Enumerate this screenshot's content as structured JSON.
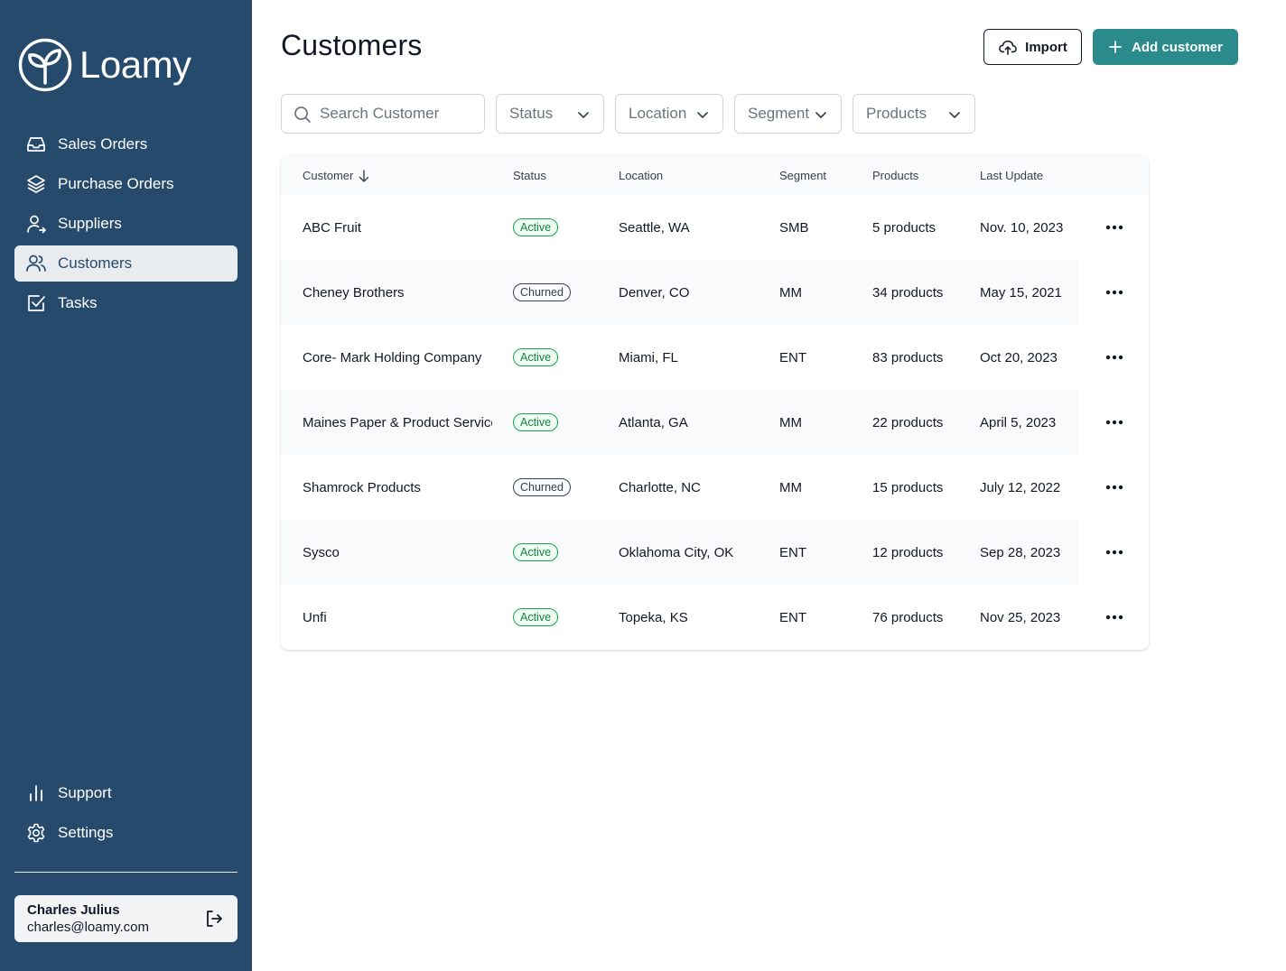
{
  "brand": {
    "name": "Loamy"
  },
  "sidebar": {
    "nav": [
      {
        "label": "Sales Orders",
        "icon": "inbox-icon"
      },
      {
        "label": "Purchase Orders",
        "icon": "layers-icon"
      },
      {
        "label": "Suppliers",
        "icon": "user-arrow-icon"
      },
      {
        "label": "Customers",
        "icon": "users-icon",
        "active": true
      },
      {
        "label": "Tasks",
        "icon": "checkbox-icon"
      }
    ],
    "bottom": [
      {
        "label": "Support",
        "icon": "bar-chart-icon"
      },
      {
        "label": "Settings",
        "icon": "gear-icon"
      }
    ],
    "user": {
      "name": "Charles Julius",
      "email": "charles@loamy.com"
    }
  },
  "header": {
    "title": "Customers",
    "import_label": "Import",
    "add_label": "Add customer"
  },
  "filters": {
    "search_placeholder": "Search Customer",
    "status": "Status",
    "location": "Location",
    "segment": "Segment",
    "products": "Products"
  },
  "table": {
    "columns": {
      "customer": "Customer",
      "status": "Status",
      "location": "Location",
      "segment": "Segment",
      "products": "Products",
      "last_update": "Last Update"
    },
    "rows": [
      {
        "customer": "ABC Fruit",
        "status": "Active",
        "location": "Seattle, WA",
        "segment": "SMB",
        "products": "5 products",
        "last_update": "Nov. 10, 2023"
      },
      {
        "customer": "Cheney Brothers",
        "status": "Churned",
        "location": "Denver, CO",
        "segment": "MM",
        "products": "34 products",
        "last_update": "May 15, 2021"
      },
      {
        "customer": "Core- Mark Holding Company",
        "status": "Active",
        "location": "Miami, FL",
        "segment": "ENT",
        "products": "83 products",
        "last_update": "Oct 20, 2023"
      },
      {
        "customer": "Maines Paper & Product Service",
        "status": "Active",
        "location": "Atlanta, GA",
        "segment": "MM",
        "products": "22 products",
        "last_update": "April 5, 2023"
      },
      {
        "customer": "Shamrock Products",
        "status": "Churned",
        "location": "Charlotte, NC",
        "segment": "MM",
        "products": "15 products",
        "last_update": "July 12, 2022"
      },
      {
        "customer": "Sysco",
        "status": "Active",
        "location": "Oklahoma City, OK",
        "segment": "ENT",
        "products": "12 products",
        "last_update": "Sep 28, 2023"
      },
      {
        "customer": "Unfi",
        "status": "Active",
        "location": "Topeka, KS",
        "segment": "ENT",
        "products": "76 products",
        "last_update": "Nov 25, 2023"
      }
    ]
  }
}
